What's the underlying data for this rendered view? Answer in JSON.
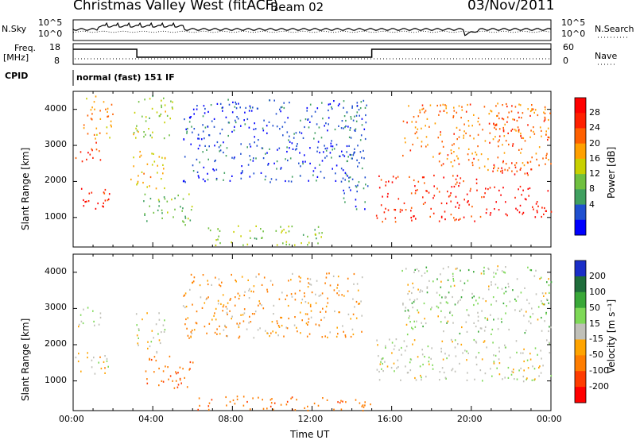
{
  "header": {
    "title": "Christmas Valley West (fitACF)",
    "beam": "Beam 02",
    "date": "03/Nov/2011"
  },
  "top_panels": {
    "noise_left_label": "N.Sky",
    "noise_right_label": "N.Search",
    "noise_left_ticks": [
      "10^5",
      "10^0"
    ],
    "noise_right_ticks": [
      "10^5",
      "10^0"
    ],
    "freq_left_label": "Freq.",
    "freq_left_unit": "[MHz]",
    "freq_left_ticks": [
      "18",
      "8"
    ],
    "freq_right_label": "Nave",
    "freq_right_ticks": [
      "60",
      "0"
    ],
    "cpid_label": "CPID",
    "cpid_text": "normal (fast) 151 IF"
  },
  "x_axis": {
    "title": "Time UT",
    "ticks": [
      "00:00",
      "04:00",
      "08:00",
      "12:00",
      "16:00",
      "20:00",
      "00:00"
    ]
  },
  "chart_data": [
    {
      "type": "heatmap",
      "panel": "power",
      "ylabel": "Slant Range [km]",
      "yticks": [
        1000,
        2000,
        3000,
        4000
      ],
      "ylim": [
        180,
        4500
      ],
      "xlim": [
        0,
        24
      ],
      "colorbar_label": "Power [dB]",
      "colorbar_ticks": [
        4,
        8,
        12,
        16,
        20,
        24,
        28
      ],
      "colorbar_colors": [
        "#0000ff",
        "#2050d0",
        "#40a060",
        "#70c040",
        "#c8d000",
        "#ffa000",
        "#ff6000",
        "#ff2000",
        "#ff0000"
      ],
      "background_echo_color": "#2a5db0",
      "scatter_regions": [
        {
          "t": [
            0.1,
            1.8
          ],
          "r": [
            1200,
            1900
          ],
          "level": 28
        },
        {
          "t": [
            0.1,
            1.4
          ],
          "r": [
            2500,
            3100
          ],
          "level": 26
        },
        {
          "t": [
            0.5,
            2.2
          ],
          "r": [
            3200,
            4400
          ],
          "level": 20
        },
        {
          "t": [
            2.8,
            4.6
          ],
          "r": [
            1800,
            2900
          ],
          "level": 18
        },
        {
          "t": [
            3.0,
            5.0
          ],
          "r": [
            3200,
            4500
          ],
          "level": 14
        },
        {
          "t": [
            3.5,
            6.0
          ],
          "r": [
            800,
            1700
          ],
          "level": 12
        },
        {
          "t": [
            5.5,
            14.5
          ],
          "r": [
            2000,
            4300
          ],
          "level": 5
        },
        {
          "t": [
            6.5,
            12.5
          ],
          "r": [
            250,
            800
          ],
          "level": 14
        },
        {
          "t": [
            13.5,
            14.8
          ],
          "r": [
            1200,
            4300
          ],
          "level": 6
        },
        {
          "t": [
            15.2,
            20.5
          ],
          "r": [
            900,
            2200
          ],
          "level": 27
        },
        {
          "t": [
            16.5,
            24.0
          ],
          "r": [
            2300,
            4200
          ],
          "level": 22
        },
        {
          "t": [
            20.6,
            24.0
          ],
          "r": [
            1000,
            1900
          ],
          "level": 29
        },
        {
          "t": [
            21.0,
            24.0
          ],
          "r": [
            2200,
            2600
          ],
          "level": 26
        },
        {
          "t": [
            21.0,
            24.0
          ],
          "r": [
            3300,
            3800
          ],
          "level": 24
        }
      ]
    },
    {
      "type": "heatmap",
      "panel": "velocity",
      "ylabel": "Slant Range [km]",
      "yticks": [
        1000,
        2000,
        3000,
        4000
      ],
      "ylim": [
        180,
        4500
      ],
      "xlim": [
        0,
        24
      ],
      "colorbar_label": "Velocity [m s⁻¹]",
      "colorbar_ticks": [
        200,
        100,
        50,
        15,
        -15,
        -50,
        -100,
        -200
      ],
      "colorbar_colors": [
        "#1a2ec8",
        "#1f6d3b",
        "#39a838",
        "#7ed957",
        "#c0c0b8",
        "#ffa400",
        "#ff7d00",
        "#ff3c00",
        "#ff0000"
      ],
      "scatter_regions": [
        {
          "t": [
            0.1,
            1.8
          ],
          "r": [
            1200,
            1900
          ],
          "level": -10
        },
        {
          "t": [
            0.1,
            1.4
          ],
          "r": [
            2500,
            3100
          ],
          "level": 0
        },
        {
          "t": [
            3.0,
            4.6
          ],
          "r": [
            1800,
            2900
          ],
          "level": 0
        },
        {
          "t": [
            3.5,
            6.0
          ],
          "r": [
            800,
            1700
          ],
          "level": -60
        },
        {
          "t": [
            5.5,
            14.5
          ],
          "r": [
            2200,
            4000
          ],
          "level": -30
        },
        {
          "t": [
            6.0,
            15.0
          ],
          "r": [
            200,
            600
          ],
          "level": -60
        },
        {
          "t": [
            15.2,
            24.0
          ],
          "r": [
            1000,
            2200
          ],
          "level": 0
        },
        {
          "t": [
            16.5,
            24.0
          ],
          "r": [
            2300,
            4200
          ],
          "level": 10
        }
      ]
    }
  ]
}
